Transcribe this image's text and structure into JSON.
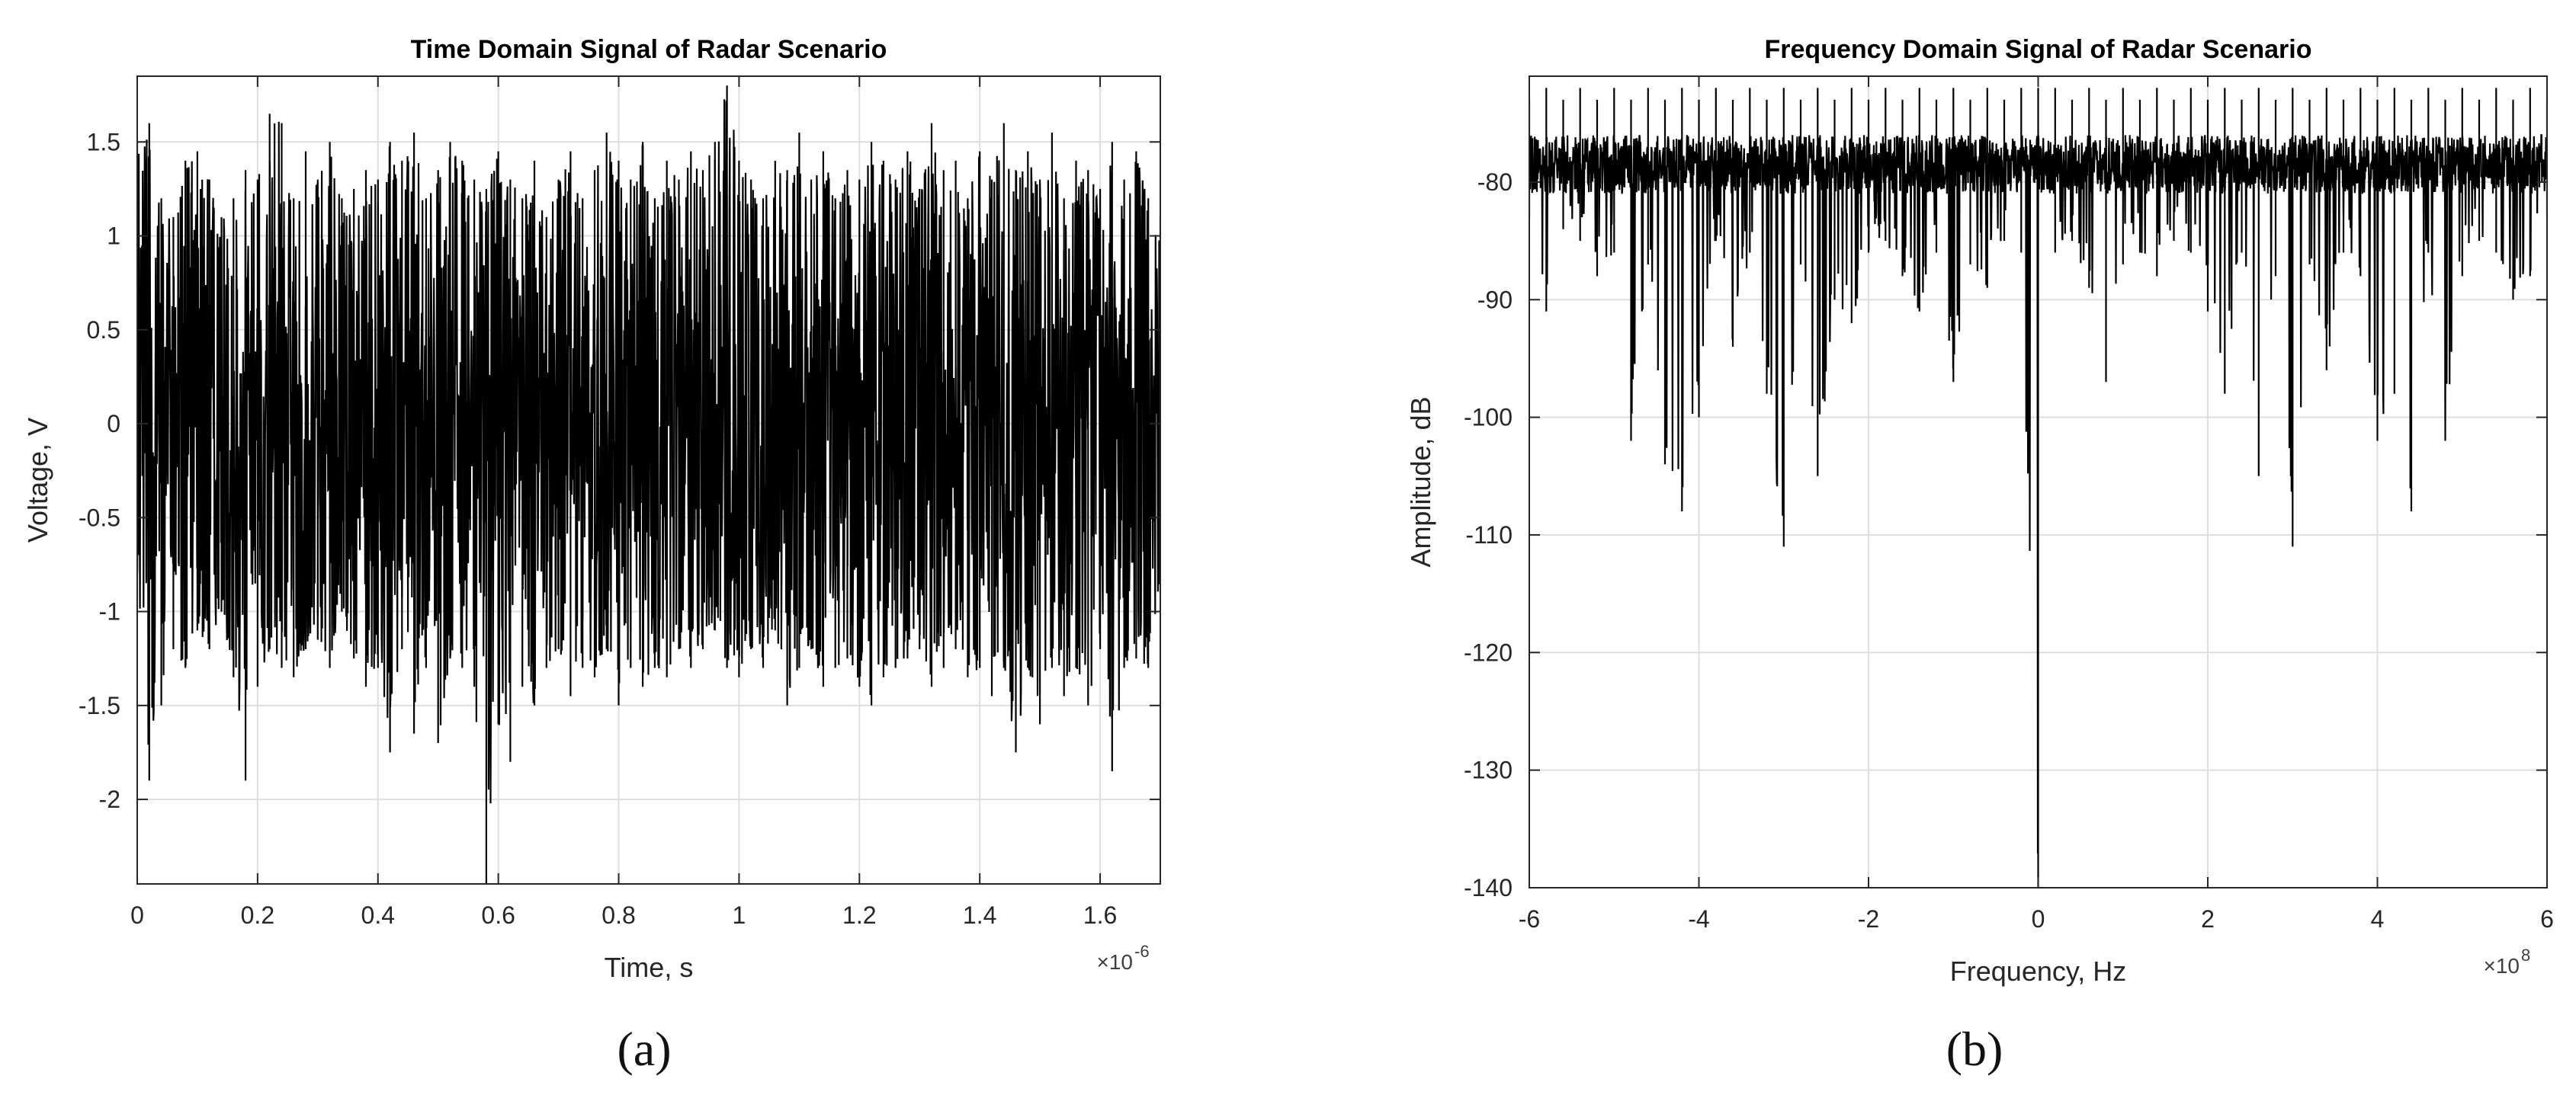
{
  "panels": [
    {
      "caption": "(a)",
      "title": "Time Domain Signal of Radar Scenario",
      "xlabel": "Time, s",
      "ylabel": "Voltage, V",
      "x_exponent": "10",
      "x_exponent_power": "-6",
      "x_ticks": [
        "0",
        "0.2",
        "0.4",
        "0.6",
        "0.8",
        "1",
        "1.2",
        "1.4",
        "1.6"
      ],
      "y_ticks": [
        "1.5",
        "1",
        "0.5",
        "0",
        "-0.5",
        "-1",
        "-1.5",
        "-2"
      ]
    },
    {
      "caption": "(b)",
      "title": "Frequency Domain Signal of Radar Scenario",
      "xlabel": "Frequency, Hz",
      "ylabel": "Amplitude, dB",
      "x_exponent": "10",
      "x_exponent_power": "8",
      "x_ticks": [
        "-6",
        "-4",
        "-2",
        "0",
        "2",
        "4",
        "6"
      ],
      "y_ticks": [
        "-80",
        "-90",
        "-100",
        "-110",
        "-120",
        "-130",
        "-140"
      ]
    }
  ],
  "chart_data": [
    {
      "type": "line",
      "title": "Time Domain Signal of Radar Scenario",
      "xlabel": "Time, s",
      "ylabel": "Voltage, V",
      "x_scale_exponent": -6,
      "xlim": [
        0,
        1.7
      ],
      "ylim": [
        -2.45,
        1.85
      ],
      "x_ticks": [
        0,
        0.2,
        0.4,
        0.6,
        0.8,
        1,
        1.2,
        1.4,
        1.6
      ],
      "y_ticks": [
        1.5,
        1,
        0.5,
        0,
        -0.5,
        -1,
        -1.5,
        -2
      ],
      "grid": true,
      "color": "#000000",
      "series": [
        {
          "x": [
            0,
            0.02,
            0.04,
            0.06,
            0.08,
            0.1,
            0.12,
            0.14,
            0.16,
            0.18,
            0.2,
            0.22,
            0.24,
            0.26,
            0.28,
            0.3,
            0.32,
            0.34,
            0.36,
            0.38,
            0.4,
            0.42,
            0.44,
            0.46,
            0.48,
            0.5,
            0.52,
            0.54,
            0.56,
            0.58,
            0.6,
            0.62,
            0.64,
            0.66,
            0.68,
            0.7,
            0.72,
            0.74,
            0.76,
            0.78,
            0.8,
            0.82,
            0.84,
            0.86,
            0.88,
            0.9,
            0.92,
            0.94,
            0.96,
            0.98,
            1.0,
            1.02,
            1.04,
            1.06,
            1.08,
            1.1,
            1.12,
            1.14,
            1.16,
            1.18,
            1.2,
            1.22,
            1.24,
            1.26,
            1.28,
            1.3,
            1.32,
            1.34,
            1.36,
            1.38,
            1.4,
            1.42,
            1.44,
            1.46,
            1.48,
            1.5,
            1.52,
            1.54,
            1.56,
            1.58,
            1.6,
            1.62,
            1.64,
            1.66,
            1.68,
            1.7
          ],
          "upper": [
            1.5,
            1.6,
            1.2,
            1.1,
            1.4,
            1.45,
            1.3,
            1.1,
            1.2,
            1.35,
            1.3,
            1.65,
            1.6,
            1.2,
            1.45,
            1.3,
            1.5,
            1.2,
            1.25,
            1.35,
            1.3,
            1.5,
            1.4,
            1.55,
            1.2,
            1.35,
            1.5,
            1.4,
            1.3,
            1.25,
            1.45,
            1.3,
            1.2,
            1.4,
            1.1,
            1.3,
            1.45,
            1.2,
            1.35,
            1.55,
            1.4,
            1.3,
            1.5,
            1.2,
            1.4,
            1.3,
            1.45,
            1.35,
            1.5,
            1.8,
            1.4,
            1.3,
            1.2,
            1.4,
            1.35,
            1.55,
            1.3,
            1.45,
            1.2,
            1.35,
            1.3,
            1.5,
            1.4,
            1.3,
            1.45,
            1.25,
            1.6,
            1.35,
            1.4,
            1.2,
            1.45,
            1.3,
            1.6,
            1.35,
            1.45,
            1.3,
            1.55,
            1.2,
            1.4,
            1.35,
            1.25,
            1.5,
            1.3,
            1.45,
            1.2,
            1.1
          ],
          "lower": [
            -0.8,
            -1.9,
            -1.5,
            -1.2,
            -1.3,
            -1.1,
            -1.2,
            -1.0,
            -1.35,
            -1.9,
            -1.4,
            -1.2,
            -1.3,
            -1.35,
            -1.2,
            -1.15,
            -1.3,
            -1.0,
            -1.25,
            -1.4,
            -1.3,
            -1.75,
            -1.2,
            -1.65,
            -1.3,
            -1.7,
            -1.25,
            -1.3,
            -1.4,
            -2.45,
            -1.6,
            -1.8,
            -1.4,
            -1.5,
            -1.3,
            -1.2,
            -1.45,
            -1.3,
            -1.35,
            -1.2,
            -1.5,
            -1.3,
            -1.4,
            -1.3,
            -1.35,
            -1.2,
            -1.3,
            -1.2,
            -1.1,
            -1.3,
            -1.35,
            -1.2,
            -1.3,
            -1.1,
            -1.5,
            -1.3,
            -1.2,
            -1.4,
            -1.3,
            -1.25,
            -1.4,
            -1.5,
            -1.35,
            -1.3,
            -1.25,
            -1.2,
            -1.4,
            -1.3,
            -1.2,
            -1.35,
            -1.3,
            -1.45,
            -1.3,
            -1.75,
            -1.3,
            -1.6,
            -1.3,
            -1.45,
            -1.3,
            -1.5,
            -1.2,
            -1.85,
            -1.3,
            -1.25,
            -1.3,
            -0.9
          ]
        }
      ]
    },
    {
      "type": "line",
      "title": "Frequency Domain Signal of Radar Scenario",
      "xlabel": "Frequency, Hz",
      "ylabel": "Amplitude, dB",
      "x_scale_exponent": 8,
      "xlim": [
        -6,
        6
      ],
      "ylim": [
        -140,
        -71
      ],
      "x_ticks": [
        -6,
        -4,
        -2,
        0,
        2,
        4,
        6
      ],
      "y_ticks": [
        -80,
        -90,
        -100,
        -110,
        -120,
        -130,
        -140
      ],
      "grid": true,
      "color": "#000000",
      "series": [
        {
          "x": [
            -6.0,
            -5.8,
            -5.6,
            -5.4,
            -5.2,
            -5.0,
            -4.8,
            -4.6,
            -4.4,
            -4.2,
            -4.0,
            -3.8,
            -3.6,
            -3.4,
            -3.2,
            -3.0,
            -2.8,
            -2.6,
            -2.4,
            -2.2,
            -2.0,
            -1.8,
            -1.6,
            -1.4,
            -1.2,
            -1.0,
            -0.8,
            -0.6,
            -0.4,
            -0.2,
            0.0,
            0.2,
            0.4,
            0.6,
            0.8,
            1.0,
            1.2,
            1.4,
            1.6,
            1.8,
            2.0,
            2.2,
            2.4,
            2.6,
            2.8,
            3.0,
            3.2,
            3.4,
            3.6,
            3.8,
            4.0,
            4.2,
            4.4,
            4.6,
            4.8,
            5.0,
            5.2,
            5.4,
            5.6,
            5.8,
            6.0
          ],
          "upper": [
            -73,
            -72,
            -73,
            -72,
            -73,
            -72,
            -73,
            -72,
            -73,
            -72,
            -73,
            -72,
            -73,
            -72,
            -73,
            -72,
            -73,
            -72,
            -73,
            -72,
            -73,
            -72,
            -73,
            -72,
            -73,
            -72,
            -73,
            -72,
            -73,
            -72,
            -72,
            -72,
            -73,
            -72,
            -73,
            -72,
            -73,
            -72,
            -73,
            -72,
            -73,
            -72,
            -73,
            -72,
            -73,
            -72,
            -73,
            -72,
            -73,
            -72,
            -73,
            -72,
            -73,
            -72,
            -73,
            -72,
            -73,
            -72,
            -73,
            -72,
            -73
          ],
          "lower": [
            -83,
            -91,
            -84,
            -85,
            -88,
            -86,
            -102,
            -87,
            -104,
            -108,
            -100,
            -85,
            -94,
            -86,
            -98,
            -111,
            -87,
            -105,
            -90,
            -92,
            -86,
            -85,
            -88,
            -91,
            -86,
            -97,
            -87,
            -89,
            -85,
            -86,
            -140,
            -86,
            -85,
            -89,
            -97,
            -87,
            -86,
            -88,
            -85,
            -86,
            -91,
            -98,
            -86,
            -105,
            -88,
            -111,
            -87,
            -96,
            -86,
            -88,
            -102,
            -98,
            -108,
            -86,
            -102,
            -88,
            -85,
            -86,
            -90,
            -88,
            -83
          ]
        }
      ]
    }
  ]
}
